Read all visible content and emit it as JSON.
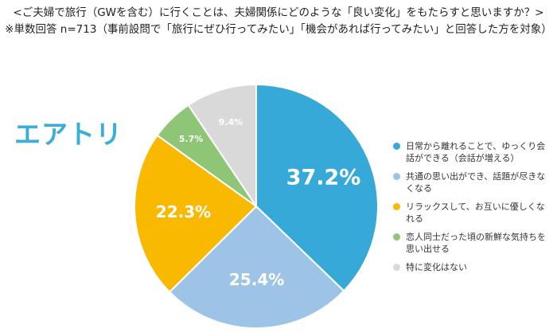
{
  "header": {
    "title_line1": "<ご夫婦で旅行（GWを含む）に行くことは、夫婦関係にどのような「良い変化」をもたらすと思いますか？>",
    "title_line2": "※単数回答 n=713（事前設問で「旅行にぜひ行ってみたい」「機会があれば行ってみたい」と回答した方を対象）"
  },
  "logo": {
    "text": "エアトリ",
    "color": "#3aaed8"
  },
  "chart_data": {
    "type": "pie",
    "start": "12 o'clock",
    "direction": "clockwise",
    "legend_position": "right",
    "slices": [
      {
        "label": "日常から離れることで、ゆっくり会話ができる（会話が増える）",
        "value": 37.2,
        "display": "37.2%",
        "color": "#36a9d8",
        "label_color": "#ffffff"
      },
      {
        "label": "共通の思い出ができ、話題が尽きなくなる",
        "value": 25.4,
        "display": "25.4%",
        "color": "#9dc3e6",
        "label_color": "#ffffff"
      },
      {
        "label": "リラックスして、お互いに優しくなれる",
        "value": 22.3,
        "display": "22.3%",
        "color": "#f8b900",
        "label_color": "#ffffff"
      },
      {
        "label": "恋人同士だった頃の新鮮な気持ちを思い出せる",
        "value": 5.7,
        "display": "5.7%",
        "color": "#8fc576",
        "label_color": "#ffffff"
      },
      {
        "label": "特に変化はない",
        "value": 9.4,
        "display": "9.4%",
        "color": "#d9d9d9",
        "label_color": "#ffffff"
      }
    ]
  }
}
